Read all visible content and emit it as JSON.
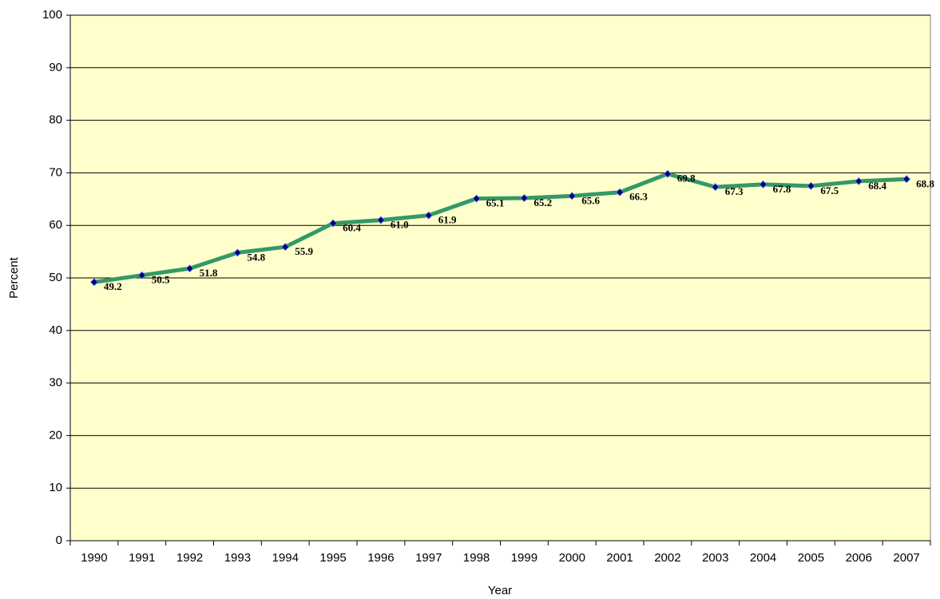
{
  "chart_data": {
    "type": "line",
    "x_label": "Year",
    "y_label": "Percent",
    "categories": [
      "1990",
      "1991",
      "1992",
      "1993",
      "1994",
      "1995",
      "1996",
      "1997",
      "1998",
      "1999",
      "2000",
      "2001",
      "2002",
      "2003",
      "2004",
      "2005",
      "2006",
      "2007"
    ],
    "series": [
      {
        "name": "Percent",
        "color": "#339966",
        "marker_color": "#000080",
        "values": [
          49.2,
          50.5,
          51.8,
          54.8,
          55.9,
          60.4,
          61.0,
          61.9,
          65.1,
          65.2,
          65.6,
          66.3,
          69.8,
          67.3,
          67.8,
          67.5,
          68.4,
          68.8
        ],
        "value_labels": [
          "49.2",
          "50.5",
          "51.8",
          "54.8",
          "55.9",
          "60.4",
          "61.0",
          "61.9",
          "65.1",
          "65.2",
          "65.6",
          "66.3",
          "69.8",
          "67.3",
          "67.8",
          "67.5",
          "68.4",
          "68.8"
        ]
      }
    ],
    "ylim": [
      0,
      100
    ],
    "yticks": [
      0,
      10,
      20,
      30,
      40,
      50,
      60,
      70,
      80,
      90,
      100
    ],
    "grid": true,
    "plot_background": "#ffffcc"
  }
}
